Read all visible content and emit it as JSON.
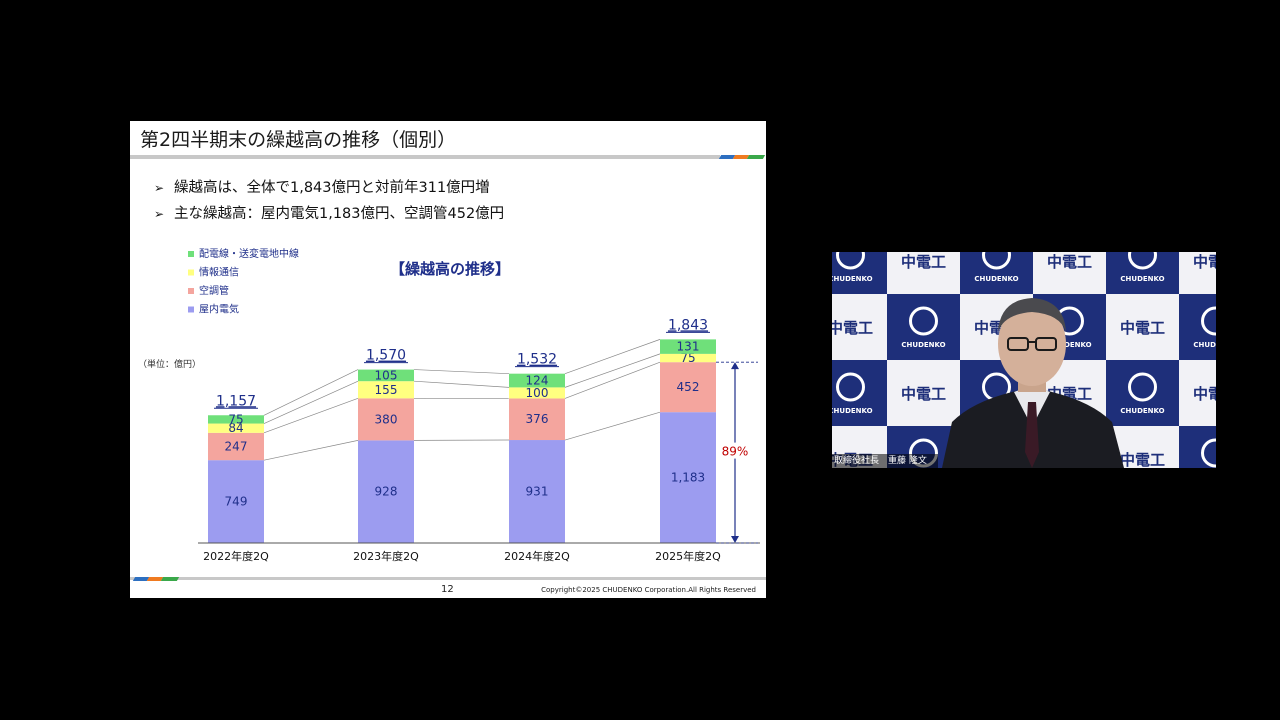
{
  "slide": {
    "title": "第2四半期末の繰越高の推移（個別）",
    "bullets": [
      "繰越高は、全体で1,843億円と対前年311億円増",
      "主な繰越高：屋内電気1,183億円、空調管452億円"
    ],
    "bullet_mark": "➢",
    "page_number": "12",
    "copyright": "Copyright©2025 CHUDENKO Corporation.All Rights Reserved"
  },
  "chart_data": {
    "type": "bar",
    "stacked": true,
    "title": "【繰越高の推移】",
    "unit": "（単位：億円）",
    "categories": [
      "2022年度2Q",
      "2023年度2Q",
      "2024年度2Q",
      "2025年度2Q"
    ],
    "series": [
      {
        "name": "屋内電気",
        "values": [
          749,
          928,
          931,
          1183
        ],
        "color": "#9c9cf0"
      },
      {
        "name": "空調管",
        "values": [
          247,
          380,
          376,
          452
        ],
        "color": "#f4a59e"
      },
      {
        "name": "情報通信",
        "values": [
          84,
          155,
          100,
          75
        ],
        "color": "#ffff80"
      },
      {
        "name": "配電線・送変電地中線",
        "values": [
          75,
          105,
          124,
          131
        ],
        "color": "#6fe07a"
      }
    ],
    "totals": [
      "1,157",
      "1,570",
      "1,532",
      "1,843"
    ],
    "value_labels": [
      [
        "749",
        "928",
        "931",
        "1,183"
      ],
      [
        "247",
        "380",
        "376",
        "452"
      ],
      [
        "84",
        "155",
        "100",
        "75"
      ],
      [
        "75",
        "105",
        "124",
        "131"
      ]
    ],
    "legend_order": [
      "配電線・送変電地中線",
      "情報通信",
      "空調管",
      "屋内電気"
    ],
    "legend_position": "top-left",
    "annotation": {
      "text": "89%",
      "color": "#c00000"
    },
    "ylim": [
      0,
      1843
    ],
    "grid": false
  },
  "video": {
    "background_text": [
      "中電工",
      "CHUDENKO"
    ],
    "caption": "取締役社長　重藤 隆文",
    "accent": "#1e2f7a"
  }
}
